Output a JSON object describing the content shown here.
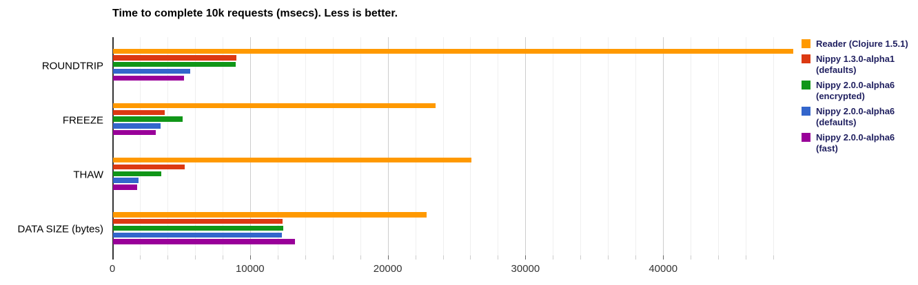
{
  "title": "Time to complete 10k requests (msecs). Less is better.",
  "chart_data": {
    "type": "bar",
    "orientation": "horizontal",
    "title": "Time to complete 10k requests (msecs). Less is better.",
    "categories": [
      "ROUNDTRIP",
      "FREEZE",
      "THAW",
      "DATA SIZE (bytes)"
    ],
    "series": [
      {
        "name": "Reader (Clojure 1.5.1)",
        "color": "#FF9900",
        "values": [
          49400,
          23420,
          26030,
          22780
        ]
      },
      {
        "name": "Nippy 1.3.0-alpha1 (defaults)",
        "color": "#DC3912",
        "values": [
          8970,
          3750,
          5230,
          12330
        ]
      },
      {
        "name": "Nippy 2.0.0-alpha6 (encrypted)",
        "color": "#109618",
        "values": [
          8910,
          5080,
          3500,
          12350
        ]
      },
      {
        "name": "Nippy 2.0.0-alpha6 (defaults)",
        "color": "#3366CC",
        "values": [
          5630,
          3450,
          1870,
          12270
        ]
      },
      {
        "name": "Nippy 2.0.0-alpha6 (fast)",
        "color": "#990099",
        "values": [
          5150,
          3110,
          1770,
          13230
        ]
      }
    ],
    "xlabel": "",
    "ylabel": "",
    "xlim": [
      0,
      49650
    ],
    "x_ticks": [
      0,
      10000,
      20000,
      30000,
      40000
    ],
    "minor_grid_step": 2000,
    "major_grid_step": 10000,
    "grid": true,
    "legend_position": "right"
  },
  "colors": {
    "background": "#ffffff",
    "title": "#000000",
    "category_label": "#000000",
    "tick_label": "#333333",
    "legend_text": "#202060",
    "axis_line": "#333333",
    "major_grid": "#cccccc",
    "minor_grid": "#efefef",
    "major_tick": "#666666",
    "minor_tick": "#cccccc"
  }
}
